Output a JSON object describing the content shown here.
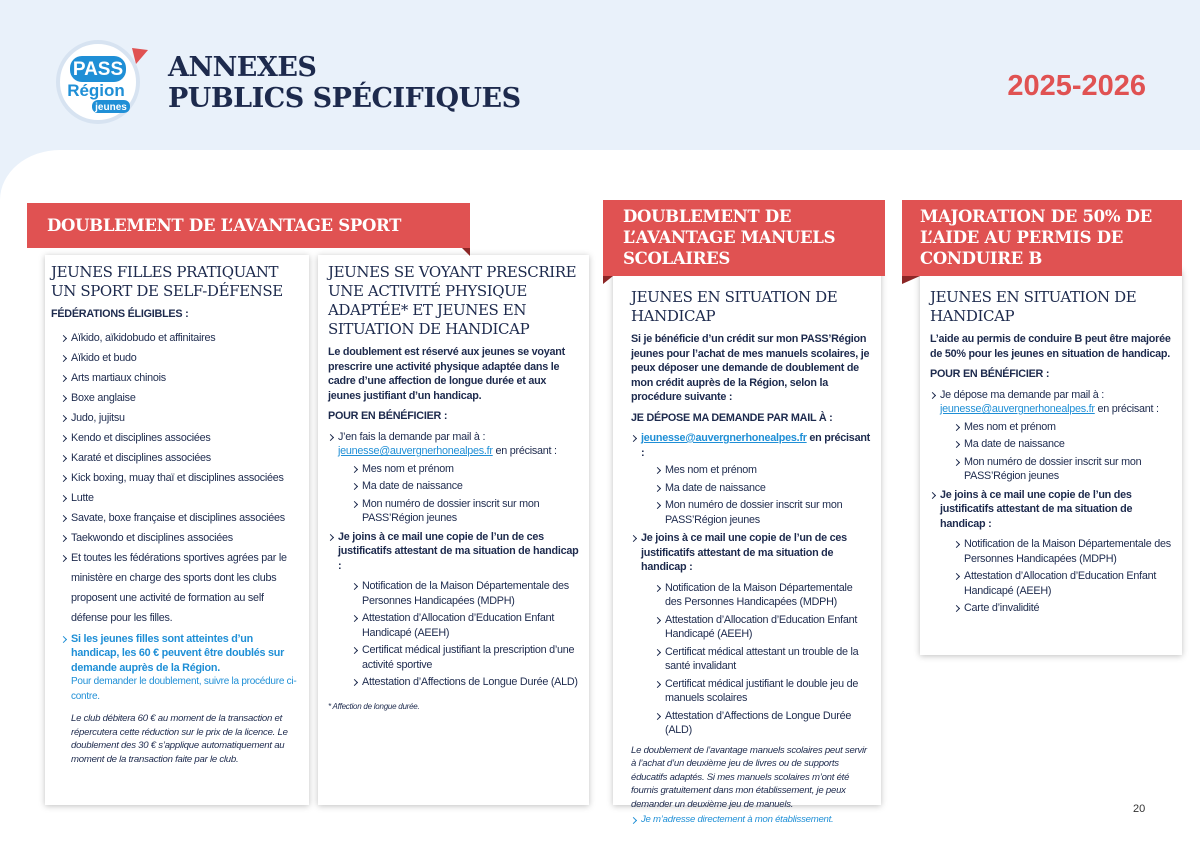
{
  "header": {
    "logo": {
      "line1": "PASS",
      "line2": "Région",
      "line3": "jeunes"
    },
    "title_line1": "ANNEXES",
    "title_line2": "PUBLICS SPÉCIFIQUES",
    "year": "2025-2026"
  },
  "sections": [
    {
      "banner": "DOUBLEMENT DE L’AVANTAGE SPORT",
      "columns": [
        {
          "heading": "JEUNES FILLES PRATIQUANT UN SPORT DE SELF-DÉFENSE",
          "subhead": "FÉDÉRATIONS ÉLIGIBLES :",
          "items": [
            "Aïkido, aïkidobudo et affinitaires",
            "Aïkido et budo",
            "Arts martiaux chinois",
            "Boxe anglaise",
            "Judo, jujitsu",
            "Kendo et disciplines associées",
            "Karaté et disciplines associées",
            "Kick boxing, muay thaï et disciplines associées",
            "Lutte",
            "Savate, boxe française et disciplines associées",
            "Taekwondo et disciplines associées",
            "Et toutes les fédérations sportives agrées par le ministère en charge des sports dont les clubs proposent une activité de formation au self défense pour les filles."
          ],
          "highlight": "Si les jeunes filles sont atteintes d’un handicap, les 60 € peuvent être doublés sur demande auprès de la Région.",
          "highlight_note": "Pour demander le doublement, suivre la procédure ci-contre.",
          "note": "Le club débitera 60 € au moment de la transaction et répercutera cette réduction sur le prix de la licence. Le doublement des 30 € s’applique automatiquement au moment de la transaction faite par le club."
        },
        {
          "heading": "JEUNES SE VOYANT PRESCRIRE UNE ACTIVITÉ PHYSIQUE ADAPTÉE* ET JEUNES EN SITUATION DE HANDICAP",
          "intro": "Le doublement est réservé aux jeunes se voyant prescrire une activité physique adaptée dans le cadre d’une affection de longue durée et aux jeunes justifiant d’un handicap.",
          "subhead": "POUR EN BÉNÉFICIER :",
          "steps": [
            {
              "text": "J’en fais la demande par mail à :",
              "email": "jeunesse@auvergnerhonealpes.fr",
              "after": " en précisant :",
              "items": [
                "Mes nom et prénom",
                "Ma date de naissance",
                "Mon numéro de dossier inscrit sur mon PASS’Région jeunes"
              ]
            },
            {
              "text": "Je joins à ce mail une copie de l’un de ces justificatifs attestant de ma situation de handicap :",
              "items": [
                "Notification de la Maison Départementale des Personnes Handicapées (MDPH)",
                "Attestation d’Allocation d’Education Enfant Handicapé (AEEH)",
                "Certificat médical justifiant la prescription d’une activité sportive",
                "Attestation d’Affections de Longue Durée (ALD)"
              ]
            }
          ],
          "footnote": "* Affection de longue durée."
        }
      ]
    },
    {
      "banner": "DOUBLEMENT DE L’AVANTAGE MANUELS SCOLAIRES",
      "columns": [
        {
          "heading": "JEUNES EN SITUATION DE HANDICAP",
          "intro": "Si je bénéficie d’un crédit sur mon PASS’Région jeunes pour l’achat de mes manuels scolaires, je peux déposer une demande de doublement de mon crédit auprès de la Région, selon la procédure suivante :",
          "subhead": "JE DÉPOSE MA DEMANDE PAR MAIL À :",
          "steps": [
            {
              "email": "jeunesse@auvergnerhonealpes.fr",
              "after": " en précisant :",
              "items": [
                "Mes nom et prénom",
                "Ma date de naissance",
                "Mon numéro de dossier inscrit sur mon PASS’Région jeunes"
              ]
            },
            {
              "text": "Je joins à ce mail une copie de l’un de ces justificatifs attestant de ma situation de handicap :",
              "items": [
                "Notification de la Maison Départementale des Personnes Handicapées (MDPH)",
                "Attestation d’Allocation d’Education Enfant Handicapé (AEEH)",
                "Certificat médical attestant un trouble de la santé invalidant",
                "Certificat médical justifiant le double jeu de manuels scolaires",
                "Attestation d’Affections de Longue Durée (ALD)"
              ]
            }
          ],
          "note": "Le doublement de l’avantage manuels scolaires peut servir à l’achat d’un deuxième jeu de livres ou de supports éducatifs adaptés. Si mes manuels scolaires m’ont été fournis gratuitement dans mon établissement, je peux demander un deuxième jeu de manuels.",
          "link": "Je m’adresse directement à mon établissement."
        }
      ]
    },
    {
      "banner": "MAJORATION DE 50% DE L’AIDE AU PERMIS DE CONDUIRE B",
      "columns": [
        {
          "heading": "JEUNES EN SITUATION DE HANDICAP",
          "intro": "L’aide au permis de conduire B peut être majorée de 50% pour les jeunes en situation de handicap.",
          "subhead": "POUR EN BÉNÉFICIER :",
          "steps": [
            {
              "text": "Je dépose ma demande par mail à :",
              "email": "jeunesse@auvergnerhonealpes.fr",
              "after": " en précisant :",
              "items": [
                "Mes nom et prénom",
                "Ma date de naissance",
                "Mon numéro de dossier inscrit sur mon PASS’Région jeunes"
              ]
            },
            {
              "text": "Je joins à ce mail une copie de l’un des justificatifs attestant de ma situation de handicap :",
              "items": [
                "Notification de la Maison Départementale des Personnes Handicapées (MDPH)",
                "Attestation d’Allocation d’Education Enfant Handicapé (AEEH)",
                "Carte d’invalidité"
              ]
            }
          ]
        }
      ]
    }
  ],
  "page_number": "20"
}
